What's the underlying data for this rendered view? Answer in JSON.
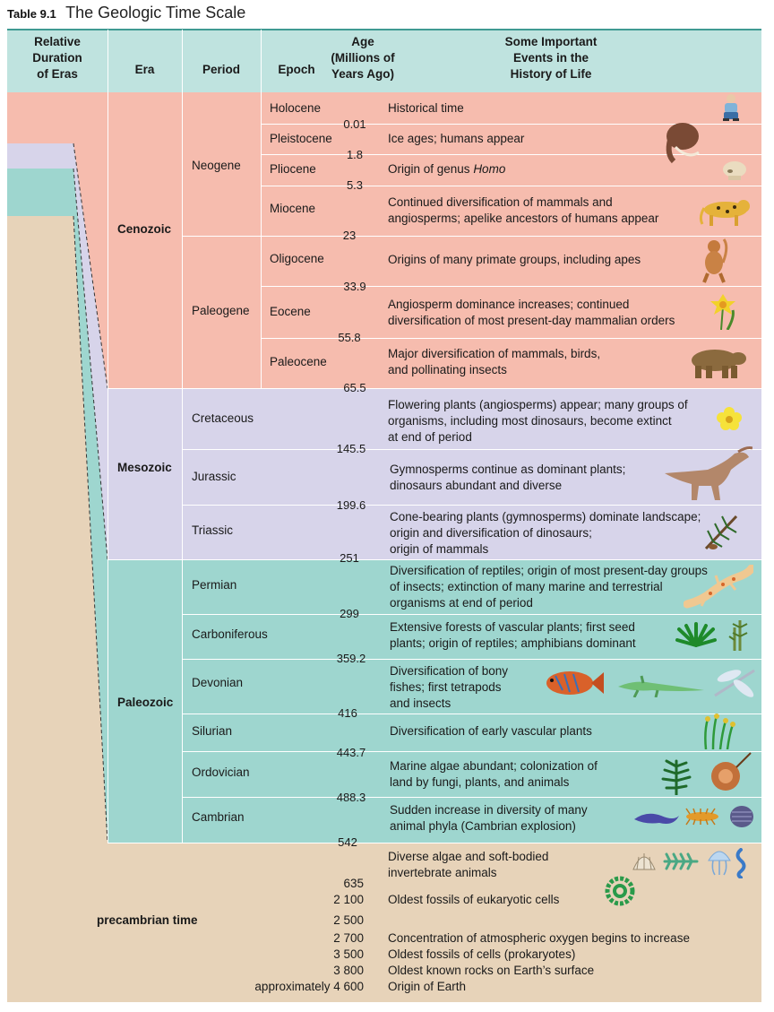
{
  "title": {
    "label": "Table 9.1",
    "text": "The Geologic Time Scale"
  },
  "headers": {
    "relative": "Relative Duration of Eras",
    "era": "Era",
    "period": "Period",
    "epoch": "Epoch",
    "age": "Age (Millions of Years Ago)",
    "events": "Some Important Events in the History of Life"
  },
  "eras": {
    "cenozoic": "Cenozoic",
    "mesozoic": "Mesozoic",
    "paleozoic": "Paleozoic",
    "precambrian": "precambrian time"
  },
  "periods": {
    "neogene": "Neogene",
    "paleogene": "Paleogene",
    "cretaceous": "Cretaceous",
    "jurassic": "Jurassic",
    "triassic": "Triassic",
    "permian": "Permian",
    "carboniferous": "Carboniferous",
    "devonian": "Devonian",
    "silurian": "Silurian",
    "ordovician": "Ordovician",
    "cambrian": "Cambrian"
  },
  "epochs": {
    "holocene": "Holocene",
    "pleistocene": "Pleistocene",
    "pliocene": "Pliocene",
    "miocene": "Miocene",
    "oligocene": "Oligocene",
    "eocene": "Eocene",
    "paleocene": "Paleocene"
  },
  "ages": [
    "0.01",
    "1.8",
    "5.3",
    "23",
    "33.9",
    "55.8",
    "65.5",
    "145.5",
    "199.6",
    "251",
    "299",
    "359.2",
    "416",
    "443.7",
    "488.3",
    "542"
  ],
  "events": {
    "holocene": "Historical time",
    "pleistocene": "Ice ages; humans appear",
    "pliocene_pre": "Origin of genus ",
    "pliocene_em": "Homo",
    "miocene_1": "Continued diversification of mammals and",
    "miocene_2": "angiosperms; apelike ancestors of humans appear",
    "oligocene": "Origins of many primate groups, including apes",
    "eocene_1": "Angiosperm dominance increases; continued",
    "eocene_2": "diversification of most present-day mammalian orders",
    "paleocene_1": "Major diversification of mammals, birds,",
    "paleocene_2": "and pollinating insects",
    "cretaceous_1": "Flowering plants (angiosperms) appear; many groups of",
    "cretaceous_2": "organisms, including most dinosaurs, become extinct",
    "cretaceous_3": "at end of period",
    "jurassic_1": "Gymnosperms continue as dominant plants;",
    "jurassic_2": "dinosaurs abundant and diverse",
    "triassic_1": "Cone-bearing plants (gymnosperms) dominate landscape;",
    "triassic_2": "origin and diversification of dinosaurs;",
    "triassic_3": "origin of mammals",
    "permian_1": "Diversification of reptiles; origin of most present-day groups",
    "permian_2": "of insects; extinction of many marine and terrestrial",
    "permian_3": "organisms at end of period",
    "carboniferous_1": "Extensive forests of vascular plants; first seed",
    "carboniferous_2": "plants; origin of reptiles; amphibians dominant",
    "devonian_1": "Diversification of bony",
    "devonian_2": "fishes;  first tetrapods",
    "devonian_3": "and insects",
    "silurian": "Diversification of early vascular plants",
    "ordovician_1": "Marine algae abundant; colonization of",
    "ordovician_2": "land by fungi, plants, and animals",
    "cambrian_1": "Sudden increase in diversity of many",
    "cambrian_2": "animal phyla (Cambrian explosion)"
  },
  "precambrian": [
    {
      "age": "",
      "event": "Diverse algae and soft-bodied"
    },
    {
      "age": "",
      "event": "invertebrate animals"
    },
    {
      "age": "635",
      "event": ""
    },
    {
      "age": "2 100",
      "event": "Oldest fossils of eukaryotic cells"
    },
    {
      "age": "2 500",
      "event": ""
    },
    {
      "age": "2 700",
      "event": "Concentration of atmospheric oxygen begins to increase"
    },
    {
      "age": "3 500",
      "event": "Oldest fossils of cells (prokaryotes)"
    },
    {
      "age": "3 800",
      "event": "Oldest known rocks on Earth’s surface"
    },
    {
      "age": "approximately 4 600",
      "event": "Origin of Earth"
    }
  ],
  "colors": {
    "cenozoic": "#f6bcae",
    "mesozoic": "#d7d4ea",
    "paleozoic": "#9ed6cf",
    "precambrian": "#e7d3b9",
    "header": "#bfe3df"
  },
  "icons": [
    "human-icon",
    "mammoth-icon",
    "skull-icon",
    "cat-icon",
    "monkey-icon",
    "daffodil-icon",
    "bear-icon",
    "buttercup-icon",
    "dinosaur-icon",
    "pine-branch-icon",
    "lizard-icon",
    "fern-icon",
    "horsetail-icon",
    "fish-icon",
    "tetrapod-icon",
    "dragonfly-icon",
    "vascular-plant-icon",
    "seaweed-icon",
    "nautilus-icon",
    "worm-icon",
    "crustacean-icon",
    "trilobite-icon",
    "shell-icon",
    "algae-icon",
    "jellyfish-icon",
    "spiral-worm-icon",
    "coil-algae-icon"
  ]
}
